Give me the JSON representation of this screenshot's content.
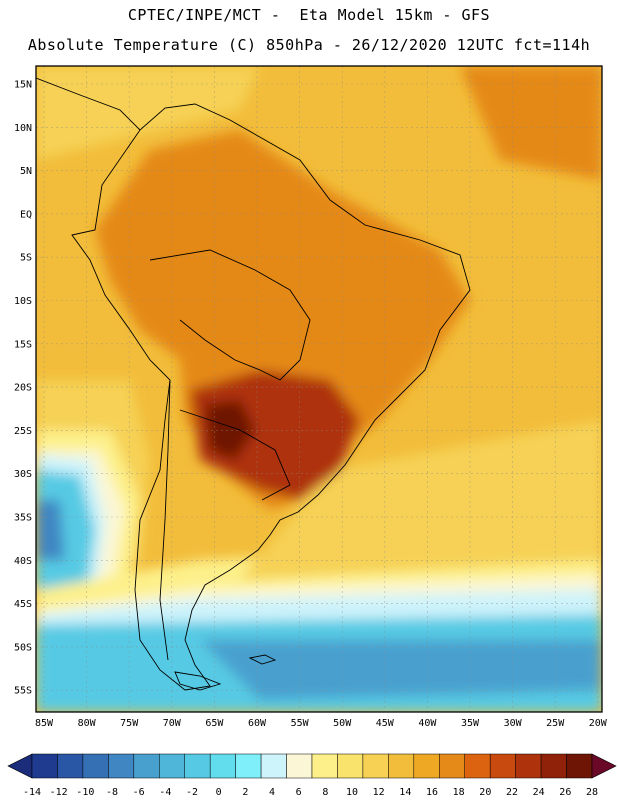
{
  "title_line1": "CPTEC/INPE/MCT -  Eta Model 15km - GFS",
  "title_line2": "Absolute Temperature (C) 850hPa - 26/12/2020 12UTC fct=114h",
  "lat_labels": [
    "15N",
    "10N",
    "5N",
    "EQ",
    "5S",
    "10S",
    "15S",
    "20S",
    "25S",
    "30S",
    "35S",
    "40S",
    "45S",
    "50S",
    "55S"
  ],
  "lon_labels": [
    "85W",
    "80W",
    "75W",
    "70W",
    "65W",
    "60W",
    "55W",
    "50W",
    "45W",
    "40W",
    "35W",
    "30W",
    "25W",
    "20W"
  ],
  "colorbar": {
    "tick_labels": [
      "-14",
      "-12",
      "-10",
      "-8",
      "-6",
      "-4",
      "-2",
      "0",
      "2",
      "4",
      "6",
      "8",
      "10",
      "12",
      "14",
      "16",
      "18",
      "20",
      "22",
      "24",
      "26",
      "28"
    ],
    "colors": [
      "#1f3b8f",
      "#2a56a6",
      "#3570b5",
      "#3f86c2",
      "#48a0cf",
      "#4fb6da",
      "#56cae4",
      "#62dded",
      "#7ff0fa",
      "#cdf3fb",
      "#fbf7d6",
      "#fdf08a",
      "#fae36c",
      "#f6d154",
      "#f2bd3a",
      "#eea823",
      "#e58918",
      "#dc6411",
      "#c94a0e",
      "#ae330c",
      "#8f2208",
      "#6e1506"
    ],
    "low_arrow_color": "#1a2c7a",
    "high_arrow_color": "#6a0828"
  },
  "map_colors": {
    "ocean_tropical": "#f2bd3a",
    "warm_land": "#e58918",
    "hot_core": "#ae330c",
    "hottest": "#6e1506",
    "mild": "#f6d154",
    "pale": "#fdf08a",
    "cream": "#fbf7d6",
    "cool_pale": "#cdf3fb",
    "cool_cyan": "#56cae4",
    "cool_mid": "#48a0cf",
    "cold": "#3f86c2"
  }
}
